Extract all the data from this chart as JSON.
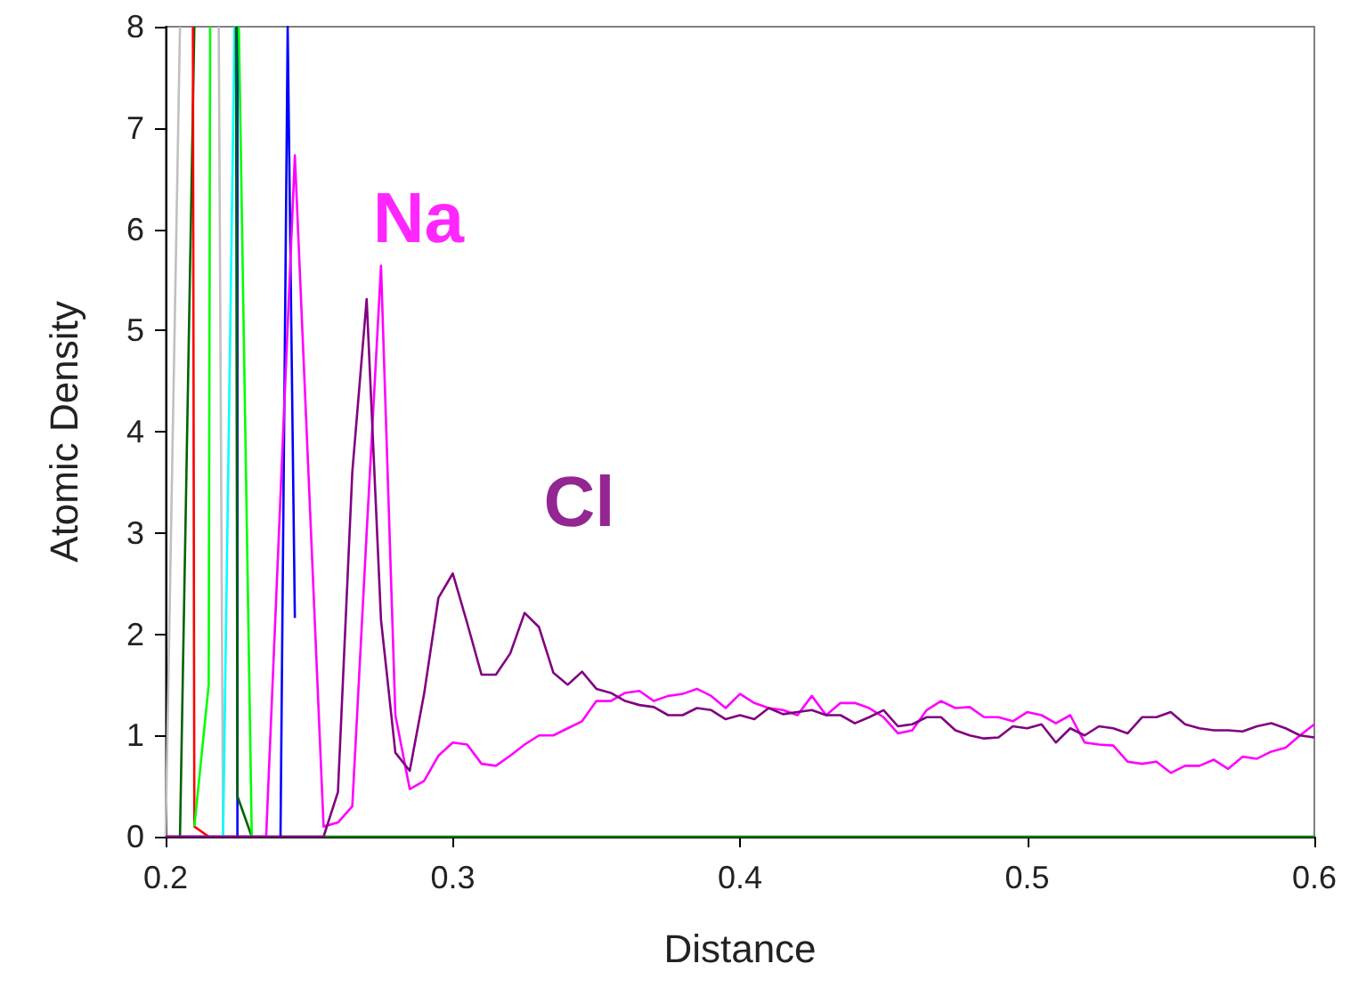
{
  "chart_data": {
    "type": "line",
    "xlabel": "Distance",
    "ylabel": "Atomic Density",
    "xlim": [
      0.2,
      0.6
    ],
    "ylim": [
      0,
      8
    ],
    "xticks": [
      0.2,
      0.3,
      0.4,
      0.5,
      0.6
    ],
    "yticks": [
      0,
      1,
      2,
      3,
      4,
      5,
      6,
      7,
      8
    ],
    "grid": false,
    "legend": false,
    "marker": "none",
    "line_style": "solid",
    "series": [
      {
        "color": "#008000",
        "x": [
          0.2,
          0.6
        ],
        "values": [
          0,
          0
        ]
      },
      {
        "color": "#c0c0c0",
        "x": [
          0.2,
          0.205
        ],
        "values": [
          0,
          8
        ]
      },
      {
        "color": "#006400",
        "x": [
          0.205,
          0.21
        ],
        "values": [
          0,
          8
        ]
      },
      {
        "color": "#ff0000",
        "x": [
          0.2095,
          0.21,
          0.215
        ],
        "values": [
          8,
          0.1,
          0
        ]
      },
      {
        "color": "#00ff00",
        "x": [
          0.21,
          0.215,
          0.2155
        ],
        "values": [
          0.1,
          1.5,
          8
        ]
      },
      {
        "color": "#c0c0c0",
        "x": [
          0.2185,
          0.22
        ],
        "values": [
          8,
          0
        ]
      },
      {
        "color": "#00ffff",
        "x": [
          0.22,
          0.224
        ],
        "values": [
          0,
          8
        ]
      },
      {
        "color": "#0000ff",
        "x": [
          0.225,
          0.225
        ],
        "values": [
          8,
          0
        ]
      },
      {
        "color": "#006400",
        "x": [
          0.2245,
          0.225,
          0.23
        ],
        "values": [
          8,
          0.4,
          0
        ]
      },
      {
        "color": "#00ff00",
        "x": [
          0.2255,
          0.23
        ],
        "values": [
          8,
          0
        ]
      },
      {
        "color": "#0000ff",
        "x": [
          0.24,
          0.2425,
          0.245
        ],
        "values": [
          0,
          8,
          2.16
        ]
      },
      {
        "name": "Na",
        "color": "#ff00ff",
        "x": [
          0.2,
          0.235,
          0.245,
          0.255,
          0.26,
          0.265,
          0.27,
          0.275,
          0.28,
          0.285,
          0.29,
          0.295,
          0.3,
          0.305,
          0.31,
          0.315,
          0.32,
          0.325,
          0.33,
          0.335,
          0.34,
          0.345,
          0.35,
          0.355,
          0.36,
          0.365,
          0.37,
          0.375,
          0.38,
          0.385,
          0.39,
          0.395,
          0.4,
          0.405,
          0.41,
          0.415,
          0.42,
          0.425,
          0.43,
          0.435,
          0.44,
          0.445,
          0.45,
          0.455,
          0.46,
          0.465,
          0.47,
          0.475,
          0.48,
          0.485,
          0.49,
          0.495,
          0.5,
          0.505,
          0.51,
          0.515,
          0.52,
          0.525,
          0.53,
          0.535,
          0.54,
          0.545,
          0.55,
          0.555,
          0.56,
          0.565,
          0.57,
          0.575,
          0.58,
          0.585,
          0.59,
          0.595,
          0.6
        ],
        "values": [
          0,
          0,
          6.73,
          0.1,
          0.14,
          0.3,
          3.0,
          5.64,
          1.2,
          0.47,
          0.55,
          0.8,
          0.93,
          0.91,
          0.72,
          0.7,
          0.8,
          0.91,
          1.0,
          1.0,
          1.07,
          1.14,
          1.34,
          1.34,
          1.42,
          1.44,
          1.34,
          1.39,
          1.41,
          1.46,
          1.39,
          1.27,
          1.41,
          1.32,
          1.27,
          1.25,
          1.2,
          1.39,
          1.2,
          1.32,
          1.32,
          1.27,
          1.18,
          1.02,
          1.05,
          1.25,
          1.34,
          1.27,
          1.28,
          1.18,
          1.18,
          1.14,
          1.23,
          1.2,
          1.12,
          1.2,
          0.93,
          0.91,
          0.9,
          0.74,
          0.72,
          0.74,
          0.63,
          0.7,
          0.7,
          0.76,
          0.67,
          0.79,
          0.77,
          0.84,
          0.88,
          1.0,
          1.11
        ]
      },
      {
        "name": "Cl",
        "color": "#800080",
        "x": [
          0.2,
          0.255,
          0.26,
          0.265,
          0.27,
          0.275,
          0.28,
          0.285,
          0.29,
          0.295,
          0.3,
          0.305,
          0.31,
          0.315,
          0.32,
          0.325,
          0.33,
          0.335,
          0.34,
          0.345,
          0.35,
          0.355,
          0.36,
          0.365,
          0.37,
          0.375,
          0.38,
          0.385,
          0.39,
          0.395,
          0.4,
          0.405,
          0.41,
          0.415,
          0.42,
          0.425,
          0.43,
          0.435,
          0.44,
          0.445,
          0.45,
          0.455,
          0.46,
          0.465,
          0.47,
          0.475,
          0.48,
          0.485,
          0.49,
          0.495,
          0.5,
          0.505,
          0.51,
          0.515,
          0.52,
          0.525,
          0.53,
          0.535,
          0.54,
          0.545,
          0.55,
          0.555,
          0.56,
          0.565,
          0.57,
          0.575,
          0.58,
          0.585,
          0.59,
          0.595,
          0.6
        ],
        "values": [
          0,
          0,
          0.44,
          3.6,
          5.31,
          2.14,
          0.83,
          0.65,
          1.41,
          2.36,
          2.6,
          2.11,
          1.6,
          1.6,
          1.81,
          2.21,
          2.07,
          1.62,
          1.5,
          1.63,
          1.46,
          1.42,
          1.34,
          1.3,
          1.28,
          1.2,
          1.2,
          1.27,
          1.25,
          1.16,
          1.2,
          1.16,
          1.27,
          1.21,
          1.23,
          1.25,
          1.2,
          1.2,
          1.12,
          1.18,
          1.25,
          1.09,
          1.11,
          1.18,
          1.18,
          1.05,
          1.0,
          0.97,
          0.98,
          1.09,
          1.07,
          1.11,
          0.93,
          1.07,
          1.0,
          1.09,
          1.07,
          1.02,
          1.18,
          1.18,
          1.23,
          1.11,
          1.07,
          1.05,
          1.05,
          1.04,
          1.09,
          1.12,
          1.07,
          1.0,
          0.98
        ]
      }
    ]
  }
}
